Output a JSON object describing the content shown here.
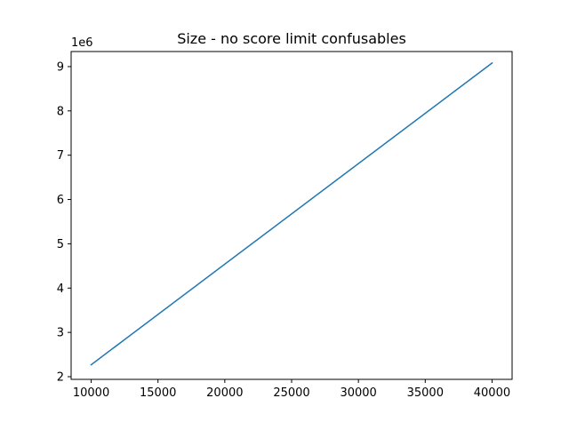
{
  "chart_data": {
    "type": "line",
    "title": "Size - no score limit confusables",
    "xlabel": "",
    "ylabel": "",
    "y_offset_label": "1e6",
    "xlim": [
      8500,
      41500
    ],
    "ylim": [
      1.94,
      9.34
    ],
    "x_ticks": [
      10000,
      15000,
      20000,
      25000,
      30000,
      35000,
      40000
    ],
    "x_tick_labels": [
      "10000",
      "15000",
      "20000",
      "25000",
      "30000",
      "35000",
      "40000"
    ],
    "y_ticks": [
      2,
      3,
      4,
      5,
      6,
      7,
      8,
      9
    ],
    "y_tick_labels": [
      "2",
      "3",
      "4",
      "5",
      "6",
      "7",
      "8",
      "9"
    ],
    "grid": false,
    "series": [
      {
        "color": "#1f77b4",
        "x": [
          10000,
          40000
        ],
        "y": [
          2.27,
          9.08
        ]
      }
    ]
  }
}
